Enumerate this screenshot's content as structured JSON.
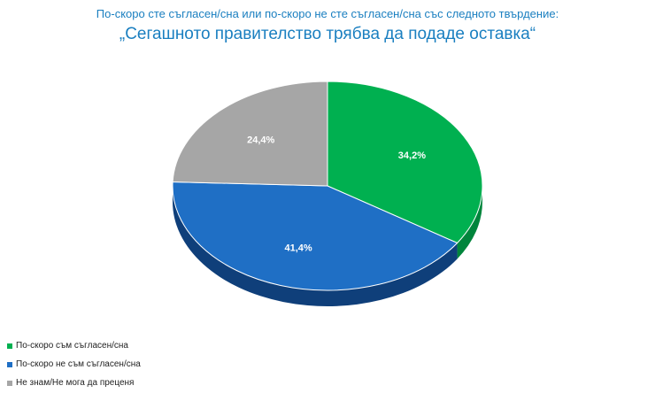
{
  "chart_data": {
    "type": "pie",
    "title": "По-скоро сте съгласен/сна или по-скоро не сте съгласен/сна със следното твърдение:",
    "subtitle": "„Сегашното правителство трябва да подаде оставка“",
    "categories": [
      "По-скоро съм съгласен/сна",
      "По-скоро не съм съгласен/сна",
      "Не знам/Не мога да преценя"
    ],
    "values": [
      34.2,
      41.4,
      24.4
    ],
    "value_labels": [
      "34,2%",
      "41,4%",
      "24,4%"
    ],
    "colors": [
      "#00b050",
      "#1f6fc5",
      "#a6a6a6"
    ],
    "shadow_colors": [
      "#00853c",
      "#0f3f7a",
      "#6d6d6d"
    ],
    "legend_position": "bottom-left",
    "grid": false
  }
}
